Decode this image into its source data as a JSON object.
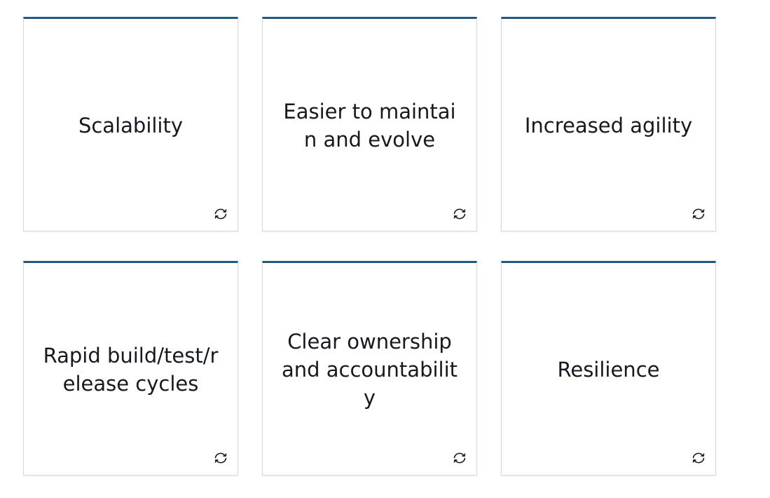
{
  "cards": [
    {
      "front": "Scalability",
      "icon": "flip-icon"
    },
    {
      "front": "Easier to maintain and evolve",
      "icon": "flip-icon"
    },
    {
      "front": "Increased agility",
      "icon": "flip-icon"
    },
    {
      "front": "Rapid build/test/release cycles",
      "icon": "flip-icon"
    },
    {
      "front": "Clear ownership and accountability",
      "icon": "flip-icon"
    },
    {
      "front": "Resilience",
      "icon": "flip-icon"
    }
  ],
  "colors": {
    "accent_top_border": "#1f5a85",
    "card_border": "#d5dbdb",
    "text": "#16191f"
  }
}
